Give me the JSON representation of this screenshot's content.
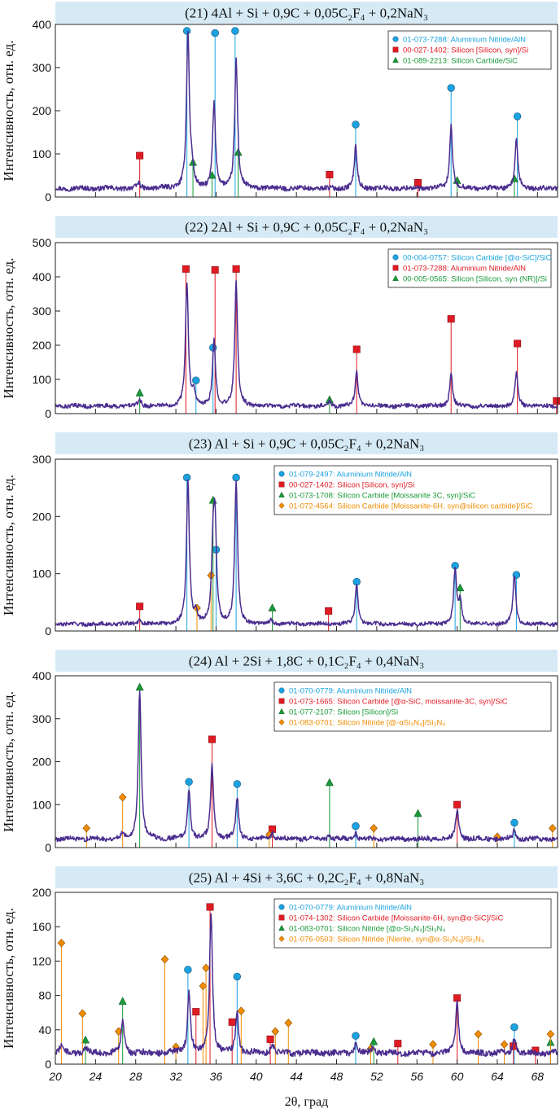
{
  "figure": {
    "xlabel": "2θ, град",
    "x_ticks": [
      20,
      24,
      28,
      32,
      36,
      40,
      44,
      48,
      52,
      56,
      60,
      64,
      68
    ],
    "xlim": [
      20,
      70
    ]
  },
  "chart_data": [
    {
      "type": "line",
      "title": "(21) 4Al + Si + 0,9C + 0,05C₂F₄ + 0,2NaN₃",
      "ylabel": "Интенсивность, отн. ед.",
      "ylim": [
        0,
        400
      ],
      "y_ticks": [
        0,
        100,
        200,
        300,
        400
      ],
      "baseline": 20,
      "peaks": [
        [
          28.3,
          12
        ],
        [
          33.2,
          360
        ],
        [
          33.6,
          35
        ],
        [
          35.8,
          195
        ],
        [
          38.0,
          300
        ],
        [
          49.9,
          95
        ],
        [
          59.4,
          145
        ],
        [
          65.9,
          110
        ]
      ],
      "legend": [
        {
          "label": "01-073-7288: Aluminium Nitride/AlN",
          "marker": "circle",
          "color": "#1aa3e0"
        },
        {
          "label": "00-027-1402: Silicon [Silicon, syn]/Si",
          "marker": "square",
          "color": "#e01b24"
        },
        {
          "label": "01-089-2213: Silicon Carbide/SiC",
          "marker": "triangle",
          "color": "#1a9a3a"
        }
      ],
      "markers": [
        {
          "series": 0,
          "x": 33.1,
          "y": 385
        },
        {
          "series": 0,
          "x": 35.9,
          "y": 380
        },
        {
          "series": 0,
          "x": 37.9,
          "y": 385
        },
        {
          "series": 0,
          "x": 49.9,
          "y": 168
        },
        {
          "series": 0,
          "x": 59.4,
          "y": 253
        },
        {
          "series": 0,
          "x": 66.0,
          "y": 187
        },
        {
          "series": 1,
          "x": 28.4,
          "y": 96
        },
        {
          "series": 1,
          "x": 47.3,
          "y": 52
        },
        {
          "series": 1,
          "x": 56.1,
          "y": 33
        },
        {
          "series": 2,
          "x": 33.7,
          "y": 80
        },
        {
          "series": 2,
          "x": 35.6,
          "y": 50
        },
        {
          "series": 2,
          "x": 38.2,
          "y": 103
        },
        {
          "series": 2,
          "x": 60.0,
          "y": 38
        },
        {
          "series": 2,
          "x": 65.7,
          "y": 42
        }
      ]
    },
    {
      "type": "line",
      "title": "(22) 2Al + Si + 0,9C + 0,05C₂F₄ + 0,2NaN₃",
      "ylabel": "Интенсивность, отн. ед.",
      "ylim": [
        0,
        500
      ],
      "y_ticks": [
        0,
        100,
        200,
        300,
        400,
        500
      ],
      "baseline": 22,
      "peaks": [
        [
          28.4,
          20
        ],
        [
          33.1,
          360
        ],
        [
          33.8,
          40
        ],
        [
          35.8,
          190
        ],
        [
          38.0,
          360
        ],
        [
          47.3,
          15
        ],
        [
          50.0,
          100
        ],
        [
          59.4,
          95
        ],
        [
          65.9,
          95
        ]
      ],
      "legend": [
        {
          "label": "00-004-0757: Silicon Carbide [@α-SiC]/SiC",
          "marker": "circle",
          "color": "#1aa3e0"
        },
        {
          "label": "01-073-7288: Aluminium Nitride/AlN",
          "marker": "square",
          "color": "#e01b24"
        },
        {
          "label": "00-005-0565: Silicon [Silicon, syn (NR)]/Si",
          "marker": "triangle",
          "color": "#1a9a3a"
        }
      ],
      "markers": [
        {
          "series": 0,
          "x": 35.7,
          "y": 193
        },
        {
          "series": 0,
          "x": 34.0,
          "y": 97
        },
        {
          "series": 1,
          "x": 33.0,
          "y": 423
        },
        {
          "series": 1,
          "x": 35.9,
          "y": 420
        },
        {
          "series": 1,
          "x": 38.0,
          "y": 423
        },
        {
          "series": 1,
          "x": 50.0,
          "y": 188
        },
        {
          "series": 1,
          "x": 59.4,
          "y": 277
        },
        {
          "series": 1,
          "x": 66.0,
          "y": 205
        },
        {
          "series": 1,
          "x": 69.9,
          "y": 37
        },
        {
          "series": 2,
          "x": 28.4,
          "y": 60
        },
        {
          "series": 2,
          "x": 47.3,
          "y": 40
        }
      ]
    },
    {
      "type": "line",
      "title": "(23) Al + Si + 0,9C + 0,05C₂F₄ + 0,2NaN₃",
      "ylabel": "Интенсивность, отн. ед.",
      "ylim": [
        0,
        300
      ],
      "y_ticks": [
        0,
        100,
        200,
        300
      ],
      "baseline": 12,
      "peaks": [
        [
          28.4,
          10
        ],
        [
          33.2,
          250
        ],
        [
          34.0,
          20
        ],
        [
          35.7,
          120
        ],
        [
          35.9,
          160
        ],
        [
          38.0,
          250
        ],
        [
          41.5,
          8
        ],
        [
          50.0,
          70
        ],
        [
          59.8,
          95
        ],
        [
          60.3,
          40
        ],
        [
          65.7,
          85
        ]
      ],
      "legend": [
        {
          "label": "01-079-2497: Aluminium Nitride/AlN",
          "marker": "circle",
          "color": "#1aa3e0"
        },
        {
          "label": "00-027-1402: Silicon [Silicon, syn]/Si",
          "marker": "square",
          "color": "#e01b24"
        },
        {
          "label": "01-073-1708: Silicon Carbide [Moissanite 3C, syn]/SiC",
          "marker": "triangle",
          "color": "#1a9a3a"
        },
        {
          "label": "01-072-4564: Silicon Carbide [Moissanite-6H, syn@silicon carbide]/SiC",
          "marker": "diamond",
          "color": "#f08c00"
        }
      ],
      "markers": [
        {
          "series": 0,
          "x": 33.1,
          "y": 268
        },
        {
          "series": 0,
          "x": 36.0,
          "y": 142
        },
        {
          "series": 0,
          "x": 38.0,
          "y": 268
        },
        {
          "series": 0,
          "x": 50.0,
          "y": 86
        },
        {
          "series": 0,
          "x": 59.8,
          "y": 114
        },
        {
          "series": 0,
          "x": 65.9,
          "y": 98
        },
        {
          "series": 1,
          "x": 28.4,
          "y": 43
        },
        {
          "series": 1,
          "x": 47.2,
          "y": 35
        },
        {
          "series": 2,
          "x": 35.7,
          "y": 228
        },
        {
          "series": 2,
          "x": 41.6,
          "y": 40
        },
        {
          "series": 2,
          "x": 60.3,
          "y": 75
        },
        {
          "series": 3,
          "x": 34.1,
          "y": 40
        },
        {
          "series": 3,
          "x": 35.5,
          "y": 97
        }
      ]
    },
    {
      "type": "line",
      "title": "(24) Al + 2Si + 1,8C + 0,1C₂F₄ + 0,4NaN₃",
      "ylabel": "Интенсивность, отн. ед.",
      "ylim": [
        0,
        400
      ],
      "y_ticks": [
        0,
        100,
        200,
        300,
        400
      ],
      "baseline": 20,
      "peaks": [
        [
          26.7,
          12
        ],
        [
          28.4,
          350
        ],
        [
          33.3,
          115
        ],
        [
          35.6,
          170
        ],
        [
          38.1,
          95
        ],
        [
          41.6,
          15
        ],
        [
          47.3,
          10
        ],
        [
          49.9,
          15
        ],
        [
          60.0,
          70
        ],
        [
          65.7,
          20
        ]
      ],
      "legend": [
        {
          "label": "01-070-0779: Aluminium Nitride/AlN",
          "marker": "circle",
          "color": "#1aa3e0"
        },
        {
          "label": "01-073-1665: Silicon Carbide [@α-SiC, moissanite-3C, syn]/SiC",
          "marker": "square",
          "color": "#e01b24"
        },
        {
          "label": "01-077-2107: Silicon [Silicon]/Si",
          "marker": "triangle",
          "color": "#1a9a3a"
        },
        {
          "label": "01-083-0701: Silicon Nitride [@-αSi₃N₄]/Si₃N₄",
          "marker": "diamond",
          "color": "#f08c00"
        }
      ],
      "markers": [
        {
          "series": 0,
          "x": 33.3,
          "y": 153
        },
        {
          "series": 0,
          "x": 38.1,
          "y": 148
        },
        {
          "series": 0,
          "x": 49.9,
          "y": 50
        },
        {
          "series": 0,
          "x": 65.7,
          "y": 58
        },
        {
          "series": 1,
          "x": 35.6,
          "y": 252
        },
        {
          "series": 1,
          "x": 41.6,
          "y": 43
        },
        {
          "series": 1,
          "x": 60.0,
          "y": 100
        },
        {
          "series": 2,
          "x": 28.4,
          "y": 373
        },
        {
          "series": 2,
          "x": 47.3,
          "y": 151
        },
        {
          "series": 2,
          "x": 56.1,
          "y": 79
        },
        {
          "series": 3,
          "x": 23.1,
          "y": 45
        },
        {
          "series": 3,
          "x": 26.7,
          "y": 117
        },
        {
          "series": 3,
          "x": 41.3,
          "y": 30
        },
        {
          "series": 3,
          "x": 51.7,
          "y": 45
        },
        {
          "series": 3,
          "x": 64.0,
          "y": 25
        },
        {
          "series": 3,
          "x": 69.5,
          "y": 45
        }
      ]
    },
    {
      "type": "line",
      "title": "(25) Al + 4Si + 3,6C + 0,2C₂F₄ + 0,8NaN₃",
      "ylabel": "Интенсивность, отн. ед.",
      "ylim": [
        0,
        200
      ],
      "y_ticks": [
        0,
        40,
        80,
        120,
        160,
        200
      ],
      "baseline": 13,
      "peaks": [
        [
          20.6,
          10
        ],
        [
          23.0,
          8
        ],
        [
          26.7,
          40
        ],
        [
          33.3,
          72
        ],
        [
          35.5,
          165
        ],
        [
          38.1,
          48
        ],
        [
          41.6,
          12
        ],
        [
          49.9,
          10
        ],
        [
          51.7,
          8
        ],
        [
          60.0,
          60
        ],
        [
          65.7,
          18
        ]
      ],
      "legend": [
        {
          "label": "01-070-0779: Aluminium Nitride/AlN",
          "marker": "circle",
          "color": "#1aa3e0"
        },
        {
          "label": "01-074-1302: Silicon Carbide [Moissanite-6H, syn@α-SiC]/SiC",
          "marker": "square",
          "color": "#e01b24"
        },
        {
          "label": "01-083-0701: Silicon Nitride [@α-Si₃N₄]/Si₃N₄",
          "marker": "triangle",
          "color": "#1a9a3a"
        },
        {
          "label": "01-076-0503: Silicon Nitride [Nierite, syn@α-Si₃N₄]/Si₃N₄",
          "marker": "diamond",
          "color": "#f08c00"
        }
      ],
      "markers": [
        {
          "series": 0,
          "x": 33.2,
          "y": 110
        },
        {
          "series": 0,
          "x": 38.1,
          "y": 102
        },
        {
          "series": 0,
          "x": 49.9,
          "y": 33
        },
        {
          "series": 0,
          "x": 65.7,
          "y": 43
        },
        {
          "series": 1,
          "x": 34.0,
          "y": 61
        },
        {
          "series": 1,
          "x": 35.4,
          "y": 183
        },
        {
          "series": 1,
          "x": 37.6,
          "y": 49
        },
        {
          "series": 1,
          "x": 41.4,
          "y": 29
        },
        {
          "series": 1,
          "x": 54.1,
          "y": 24
        },
        {
          "series": 1,
          "x": 60.0,
          "y": 77
        },
        {
          "series": 1,
          "x": 65.6,
          "y": 21
        },
        {
          "series": 1,
          "x": 67.8,
          "y": 16
        },
        {
          "series": 2,
          "x": 23.0,
          "y": 28
        },
        {
          "series": 2,
          "x": 26.7,
          "y": 73
        },
        {
          "series": 2,
          "x": 51.7,
          "y": 26
        },
        {
          "series": 2,
          "x": 69.3,
          "y": 25
        },
        {
          "series": 3,
          "x": 20.6,
          "y": 141
        },
        {
          "series": 3,
          "x": 22.7,
          "y": 59
        },
        {
          "series": 3,
          "x": 26.3,
          "y": 38
        },
        {
          "series": 3,
          "x": 30.9,
          "y": 122
        },
        {
          "series": 3,
          "x": 32.0,
          "y": 20
        },
        {
          "series": 3,
          "x": 34.7,
          "y": 91
        },
        {
          "series": 3,
          "x": 35.0,
          "y": 112
        },
        {
          "series": 3,
          "x": 38.5,
          "y": 62
        },
        {
          "series": 3,
          "x": 41.9,
          "y": 38
        },
        {
          "series": 3,
          "x": 43.2,
          "y": 48
        },
        {
          "series": 3,
          "x": 51.4,
          "y": 18
        },
        {
          "series": 3,
          "x": 57.6,
          "y": 23
        },
        {
          "series": 3,
          "x": 62.1,
          "y": 35
        },
        {
          "series": 3,
          "x": 64.7,
          "y": 23
        },
        {
          "series": 3,
          "x": 69.3,
          "y": 35
        }
      ]
    }
  ]
}
